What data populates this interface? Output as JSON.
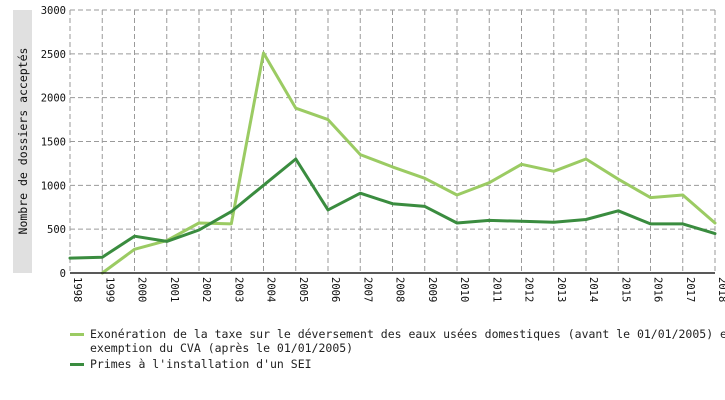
{
  "chart_data": {
    "type": "line",
    "title": "",
    "xlabel": "",
    "ylabel": "Nombre de dossiers acceptés",
    "ylim": [
      0,
      3000
    ],
    "yticks": [
      0,
      500,
      1000,
      1500,
      2000,
      2500,
      3000
    ],
    "x": [
      "1998",
      "1999",
      "2000",
      "2001",
      "2002",
      "2003",
      "2004",
      "2005",
      "2006",
      "2007",
      "2008",
      "2009",
      "2010",
      "2011",
      "2012",
      "2013",
      "2014",
      "2015",
      "2016",
      "2017",
      "2018"
    ],
    "grid": true,
    "legend_position": "bottom",
    "series": [
      {
        "name": "Exonération de la taxe sur le déversement des eaux usées domestiques (avant le 01/01/2005) et\nexemption du CVA (après le 01/01/2005)",
        "color": "#9bcb63",
        "values": [
          null,
          0,
          270,
          370,
          570,
          560,
          2510,
          1880,
          1750,
          1350,
          1210,
          1080,
          890,
          1030,
          1240,
          1160,
          1300,
          1070,
          860,
          890,
          570
        ]
      },
      {
        "name": "Primes à l'installation d'un SEI",
        "color": "#3a8c3f",
        "values": [
          170,
          180,
          420,
          360,
          490,
          700,
          1000,
          1300,
          720,
          910,
          790,
          760,
          570,
          600,
          590,
          580,
          610,
          710,
          560,
          560,
          450
        ]
      }
    ]
  }
}
